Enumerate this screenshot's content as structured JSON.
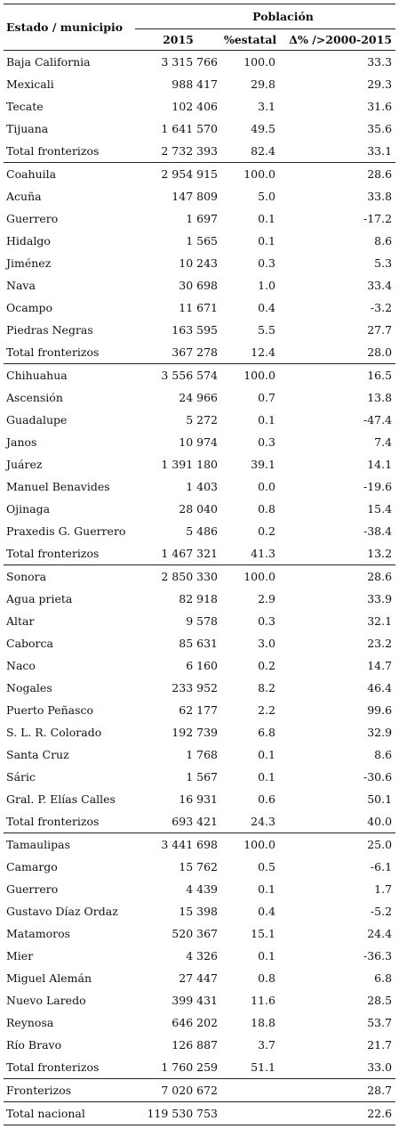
{
  "header": {
    "stub": "Estado / municipio",
    "group": "Población",
    "col_2015": "2015",
    "col_pct": "%estatal",
    "col_delta": "Δ% />2000-2015"
  },
  "rows": [
    {
      "name": "Baja California",
      "pop": "3 315 766",
      "pct": "100.0",
      "delta": "33.3"
    },
    {
      "name": "Mexicali",
      "pop": "988 417",
      "pct": "29.8",
      "delta": "29.3"
    },
    {
      "name": "Tecate",
      "pop": "102 406",
      "pct": "3.1",
      "delta": "31.6"
    },
    {
      "name": "Tijuana",
      "pop": "1 641 570",
      "pct": "49.5",
      "delta": "35.6"
    },
    {
      "name": "Total fronterizos",
      "pop": "2 732 393",
      "pct": "82.4",
      "delta": "33.1"
    },
    {
      "name": "Coahuila",
      "pop": "2 954 915",
      "pct": "100.0",
      "delta": "28.6"
    },
    {
      "name": "Acuña",
      "pop": "147 809",
      "pct": "5.0",
      "delta": "33.8"
    },
    {
      "name": "Guerrero",
      "pop": "1 697",
      "pct": "0.1",
      "delta": "-17.2"
    },
    {
      "name": "Hidalgo",
      "pop": "1 565",
      "pct": "0.1",
      "delta": "8.6"
    },
    {
      "name": "Jiménez",
      "pop": "10 243",
      "pct": "0.3",
      "delta": "5.3"
    },
    {
      "name": "Nava",
      "pop": "30 698",
      "pct": "1.0",
      "delta": "33.4"
    },
    {
      "name": "Ocampo",
      "pop": "11 671",
      "pct": "0.4",
      "delta": "-3.2"
    },
    {
      "name": "Piedras Negras",
      "pop": "163 595",
      "pct": "5.5",
      "delta": "27.7"
    },
    {
      "name": "Total fronterizos",
      "pop": "367 278",
      "pct": "12.4",
      "delta": "28.0"
    },
    {
      "name": "Chihuahua",
      "pop": "3 556 574",
      "pct": "100.0",
      "delta": "16.5"
    },
    {
      "name": "Ascensión",
      "pop": "24 966",
      "pct": "0.7",
      "delta": "13.8"
    },
    {
      "name": "Guadalupe",
      "pop": "5 272",
      "pct": "0.1",
      "delta": "-47.4"
    },
    {
      "name": "Janos",
      "pop": "10 974",
      "pct": "0.3",
      "delta": "7.4"
    },
    {
      "name": "Juárez",
      "pop": "1 391 180",
      "pct": "39.1",
      "delta": "14.1"
    },
    {
      "name": "Manuel Benavides",
      "pop": "1 403",
      "pct": "0.0",
      "delta": "-19.6"
    },
    {
      "name": "Ojinaga",
      "pop": "28 040",
      "pct": "0.8",
      "delta": "15.4"
    },
    {
      "name": "Praxedis G. Guerrero",
      "pop": "5 486",
      "pct": "0.2",
      "delta": "-38.4"
    },
    {
      "name": "Total fronterizos",
      "pop": "1 467 321",
      "pct": "41.3",
      "delta": "13.2"
    },
    {
      "name": "Sonora",
      "pop": "2 850 330",
      "pct": "100.0",
      "delta": "28.6"
    },
    {
      "name": "Agua prieta",
      "pop": "82 918",
      "pct": "2.9",
      "delta": "33.9"
    },
    {
      "name": "Altar",
      "pop": "9 578",
      "pct": "0.3",
      "delta": "32.1"
    },
    {
      "name": "Caborca",
      "pop": "85 631",
      "pct": "3.0",
      "delta": "23.2"
    },
    {
      "name": "Naco",
      "pop": "6 160",
      "pct": "0.2",
      "delta": "14.7"
    },
    {
      "name": "Nogales",
      "pop": "233 952",
      "pct": "8.2",
      "delta": "46.4"
    },
    {
      "name": "Puerto Peñasco",
      "pop": "62 177",
      "pct": "2.2",
      "delta": "99.6"
    },
    {
      "name": "S. L. R. Colorado",
      "pop": "192 739",
      "pct": "6.8",
      "delta": "32.9"
    },
    {
      "name": "Santa Cruz",
      "pop": "1 768",
      "pct": "0.1",
      "delta": "8.6"
    },
    {
      "name": "Sáric",
      "pop": "1 567",
      "pct": "0.1",
      "delta": "-30.6"
    },
    {
      "name": "Gral. P. Elías Calles",
      "pop": "16 931",
      "pct": "0.6",
      "delta": "50.1"
    },
    {
      "name": "Total fronterizos",
      "pop": "693 421",
      "pct": "24.3",
      "delta": "40.0"
    },
    {
      "name": "Tamaulipas",
      "pop": "3 441 698",
      "pct": "100.0",
      "delta": "25.0"
    },
    {
      "name": "Camargo",
      "pop": "15 762",
      "pct": "0.5",
      "delta": "-6.1"
    },
    {
      "name": "Guerrero",
      "pop": "4 439",
      "pct": "0.1",
      "delta": "1.7"
    },
    {
      "name": "Gustavo Díaz Ordaz",
      "pop": "15 398",
      "pct": "0.4",
      "delta": "-5.2"
    },
    {
      "name": "Matamoros",
      "pop": "520 367",
      "pct": "15.1",
      "delta": "24.4"
    },
    {
      "name": "Mier",
      "pop": "4 326",
      "pct": "0.1",
      "delta": "-36.3"
    },
    {
      "name": "Miguel Alemán",
      "pop": "27 447",
      "pct": "0.8",
      "delta": "6.8"
    },
    {
      "name": "Nuevo Laredo",
      "pop": "399 431",
      "pct": "11.6",
      "delta": "28.5"
    },
    {
      "name": "Reynosa",
      "pop": "646 202",
      "pct": "18.8",
      "delta": "53.7"
    },
    {
      "name": "Río Bravo",
      "pop": "126 887",
      "pct": "3.7",
      "delta": "21.7"
    },
    {
      "name": "Total fronterizos",
      "pop": "1 760 259",
      "pct": "51.1",
      "delta": "33.0"
    },
    {
      "name": "Fronterizos",
      "pop": "7 020 672",
      "pct": "",
      "delta": "28.7"
    },
    {
      "name": "Total nacional",
      "pop": "119 530 753",
      "pct": "",
      "delta": "22.6"
    }
  ]
}
